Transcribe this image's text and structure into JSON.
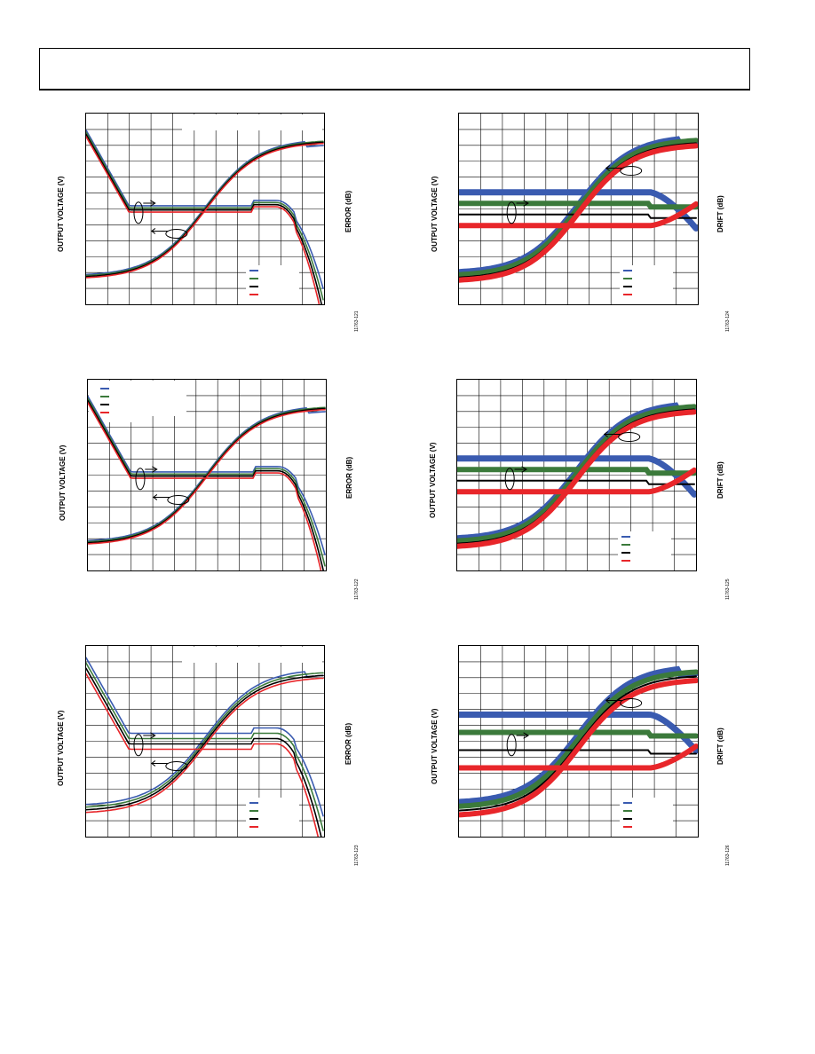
{
  "charts": [
    {
      "id": "c1",
      "left_label": "OUTPUT VOLTAGE (V)",
      "right_label": "ERROR (dB)",
      "code": "11763-121",
      "legend_top": false,
      "spread": 0,
      "variant": "error"
    },
    {
      "id": "c2",
      "left_label": "OUTPUT VOLTAGE (V)",
      "right_label": "DRIFT (dB)",
      "code": "11763-124",
      "legend_top": false,
      "spread": 1,
      "variant": "drift"
    },
    {
      "id": "c3",
      "left_label": "OUTPUT VOLTAGE (V)",
      "right_label": "ERROR (dB)",
      "code": "11763-122",
      "legend_top": true,
      "spread": 0,
      "variant": "error"
    },
    {
      "id": "c4",
      "left_label": "OUTPUT VOLTAGE (V)",
      "right_label": "DRIFT (dB)",
      "code": "11763-125",
      "legend_top": false,
      "spread": 1,
      "variant": "drift"
    },
    {
      "id": "c5",
      "left_label": "OUTPUT VOLTAGE (V)",
      "right_label": "ERROR (dB)",
      "code": "11763-123",
      "legend_top": false,
      "spread": 1,
      "variant": "error"
    },
    {
      "id": "c6",
      "left_label": "OUTPUT VOLTAGE (V)",
      "right_label": "DRIFT (dB)",
      "code": "11763-126",
      "legend_top": false,
      "spread": 2,
      "variant": "drift"
    }
  ],
  "series_colors": [
    "#3a5bb0",
    "#3b7a3b",
    "#000000",
    "#e8262a"
  ],
  "chart_data": [
    {
      "type": "line",
      "series": [
        {
          "values": [
            0,
            0
          ]
        },
        {
          "values": [
            0,
            0
          ]
        },
        {
          "values": [
            0,
            0
          ]
        },
        {
          "values": [
            0,
            0
          ]
        }
      ]
    }
  ]
}
